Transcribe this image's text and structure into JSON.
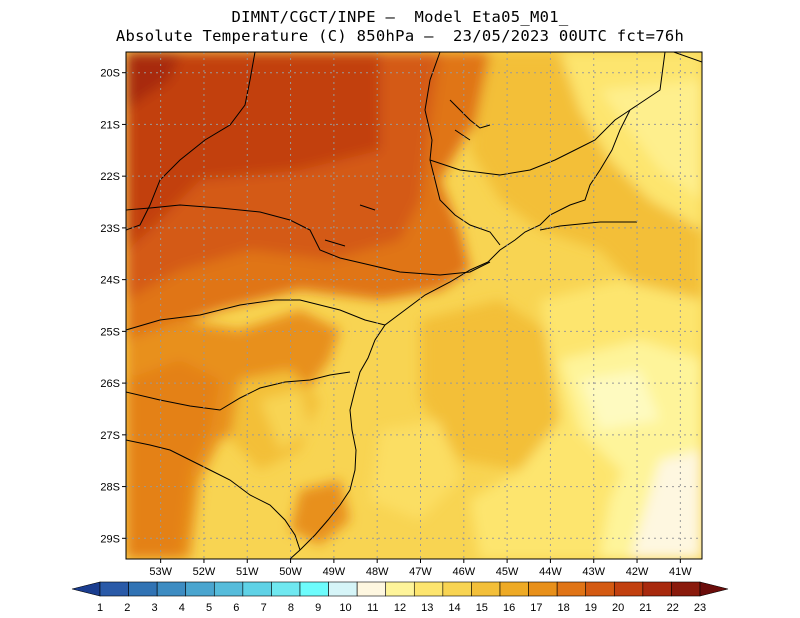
{
  "header": {
    "line1": "DIMNT/CGCT/INPE –  Model Eta05_M01_",
    "line2": "Absolute Temperature (C) 850hPa –  23/05/2023 00UTC fct=76h"
  },
  "map": {
    "lat_labels": [
      "20S",
      "21S",
      "22S",
      "23S",
      "24S",
      "25S",
      "26S",
      "27S",
      "28S",
      "29S"
    ],
    "lon_labels": [
      "53W",
      "52W",
      "51W",
      "50W",
      "49W",
      "48W",
      "47W",
      "46W",
      "45W",
      "44W",
      "43W",
      "42W",
      "41W"
    ],
    "lat_range": [
      -29.4,
      -19.6
    ],
    "lon_range": [
      -53.8,
      -40.5
    ],
    "grid": true
  },
  "colorbar": {
    "labels": [
      "1",
      "2",
      "3",
      "4",
      "5",
      "6",
      "7",
      "8",
      "9",
      "10",
      "11",
      "12",
      "13",
      "14",
      "15",
      "16",
      "17",
      "18",
      "19",
      "20",
      "21",
      "22",
      "23"
    ],
    "colors": [
      "#1a3d8f",
      "#2a5aa8",
      "#3173b4",
      "#3d8cc2",
      "#4aa5cf",
      "#56bcdb",
      "#5fd2e6",
      "#6fe8f0",
      "#6dfcfc",
      "#d6f5f8",
      "#fef7e0",
      "#fef49a",
      "#fde56e",
      "#f8d452",
      "#f3bf39",
      "#eeaa25",
      "#e8901a",
      "#e07416",
      "#d45a12",
      "#c2400f",
      "#a8290d",
      "#8a1a0c",
      "#6b0d0b"
    ]
  }
}
